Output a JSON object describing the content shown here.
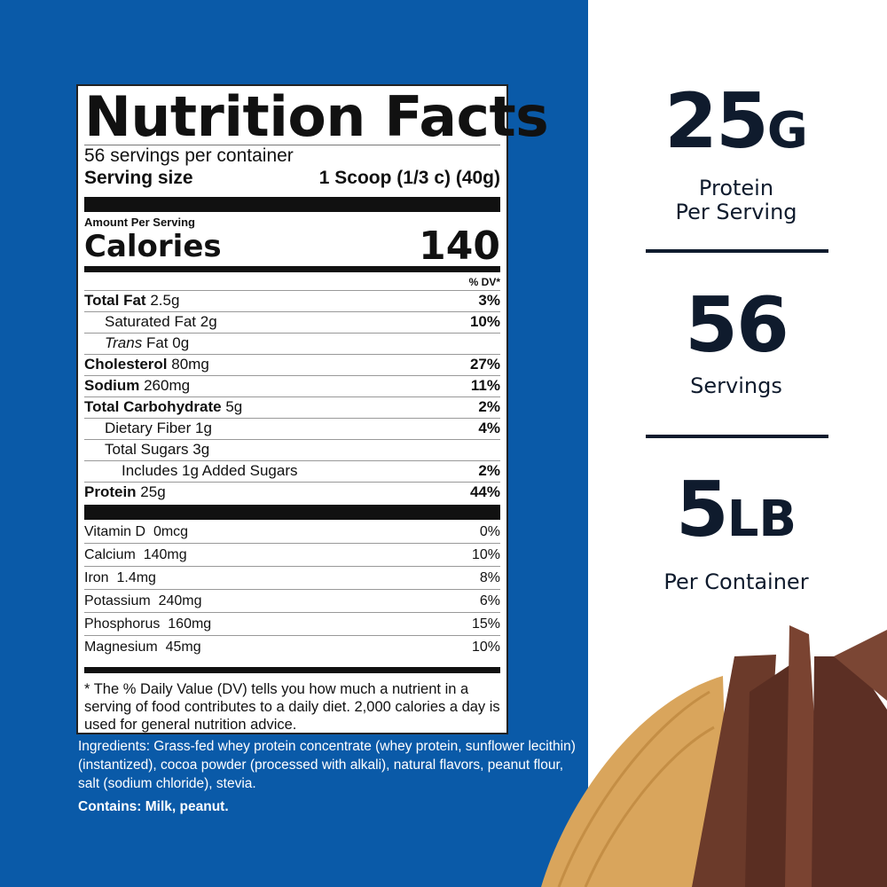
{
  "colors": {
    "panel": "#0a5aa8",
    "text_dark": "#0f1b2d"
  },
  "label": {
    "title": "Nutrition Facts",
    "servings_per_container": "56 servings per container",
    "serving_size_label": "Serving size",
    "serving_size_value": "1 Scoop (1/3 c) (40g)",
    "amount_per_serving": "Amount Per Serving",
    "calories_label": "Calories",
    "calories_value": "140",
    "dv_header": "% DV*",
    "nutrients": [
      {
        "name": "Total Fat",
        "amount": "2.5g",
        "dv": "3%"
      },
      {
        "name": "Saturated Fat",
        "amount": "2g",
        "dv": "10%"
      },
      {
        "name_italic": "Trans",
        "name": "Fat",
        "amount": "0g",
        "dv": ""
      },
      {
        "name": "Cholesterol",
        "amount": "80mg",
        "dv": "27%"
      },
      {
        "name": "Sodium",
        "amount": "260mg",
        "dv": "11%"
      },
      {
        "name": "Total Carbohydrate",
        "amount": "5g",
        "dv": "2%"
      },
      {
        "name": "Dietary Fiber",
        "amount": "1g",
        "dv": "4%"
      },
      {
        "name": "Total Sugars",
        "amount": "3g",
        "dv": ""
      },
      {
        "name": "Includes 1g Added Sugars",
        "amount": "",
        "dv": "2%"
      },
      {
        "name": "Protein",
        "amount": "25g",
        "dv": "44%"
      }
    ],
    "vitamins": [
      {
        "name": "Vitamin D",
        "amount": "0mcg",
        "dv": "0%"
      },
      {
        "name": "Calcium",
        "amount": "140mg",
        "dv": "10%"
      },
      {
        "name": "Iron",
        "amount": "1.4mg",
        "dv": "8%"
      },
      {
        "name": "Potassium",
        "amount": "240mg",
        "dv": "6%"
      },
      {
        "name": "Phosphorus",
        "amount": "160mg",
        "dv": "15%"
      },
      {
        "name": "Magnesium",
        "amount": "45mg",
        "dv": "10%"
      }
    ],
    "footnote": "* The % Daily Value (DV) tells you how much a nutrient in a serving of food contributes to a daily diet. 2,000 calories a day is used for general nutrition advice."
  },
  "ingredients": "Ingredients: Grass-fed whey protein concentrate (whey protein, sunflower lecithin)(instantized), cocoa powder (processed with alkali), natural flavors, peanut flour, salt (sodium chloride), stevia.",
  "contains": "Contains: Milk, peanut.",
  "stats": [
    {
      "value": "25",
      "unit": "G",
      "label1": "Protein",
      "label2": "Per Serving"
    },
    {
      "value": "56",
      "unit": "",
      "label1": "Servings",
      "label2": ""
    },
    {
      "value": "5",
      "unit": "LB",
      "label1": "Per Container",
      "label2": ""
    }
  ],
  "image": "peanut-butter-and-chocolate-curls"
}
